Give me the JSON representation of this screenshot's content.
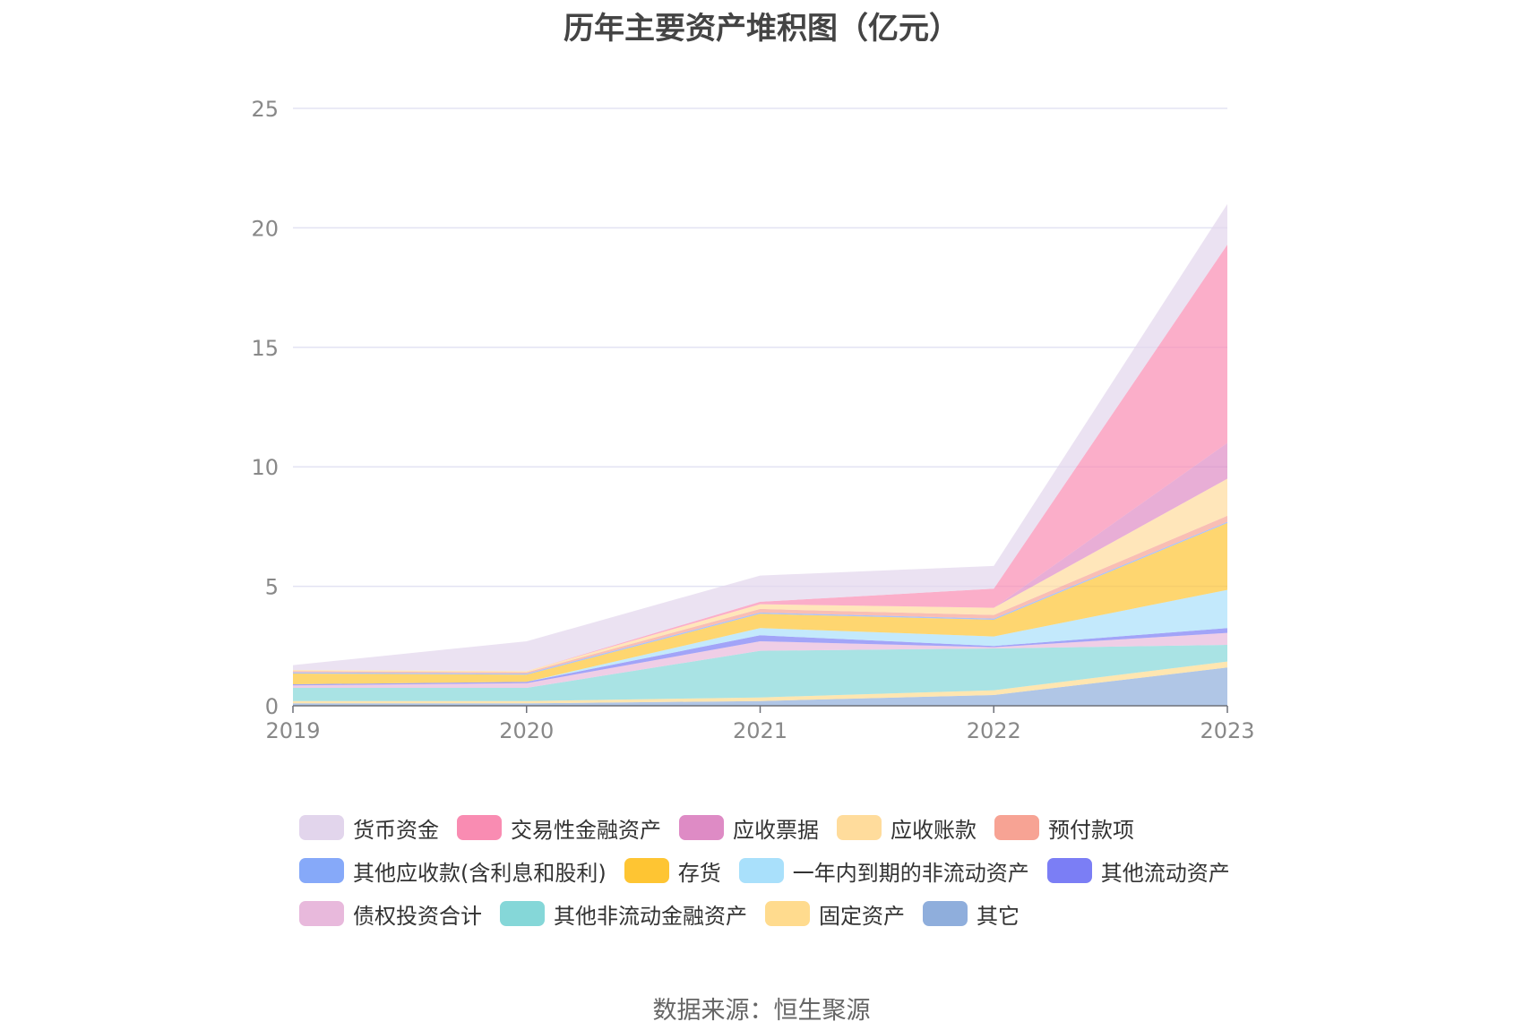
{
  "chart_data": {
    "type": "area",
    "stacked": true,
    "title": "历年主要资产堆积图（亿元）",
    "categories": [
      "2019",
      "2020",
      "2021",
      "2022",
      "2023"
    ],
    "ylim": [
      0,
      25
    ],
    "yticks": [
      0,
      5,
      10,
      15,
      20,
      25
    ],
    "grid": true,
    "legend_position": "bottom",
    "series": [
      {
        "name": "其它",
        "color": "#8faedc",
        "values": [
          0.1,
          0.1,
          0.2,
          0.45,
          1.6
        ]
      },
      {
        "name": "固定资产",
        "color": "#ffdb8e",
        "values": [
          0.1,
          0.1,
          0.15,
          0.2,
          0.25
        ]
      },
      {
        "name": "其他非流动金融资产",
        "color": "#85d7d8",
        "values": [
          0.55,
          0.55,
          1.95,
          1.75,
          0.7
        ]
      },
      {
        "name": "债权投资合计",
        "color": "#e8b9dc",
        "values": [
          0.1,
          0.2,
          0.4,
          0.05,
          0.5
        ]
      },
      {
        "name": "其他流动资产",
        "color": "#7b7ef5",
        "values": [
          0.05,
          0.05,
          0.25,
          0.05,
          0.2
        ]
      },
      {
        "name": "一年内到期的非流动资产",
        "color": "#a9e0fb",
        "values": [
          0.0,
          0.0,
          0.3,
          0.4,
          1.6
        ]
      },
      {
        "name": "存货",
        "color": "#fec533",
        "values": [
          0.45,
          0.3,
          0.6,
          0.7,
          2.8
        ]
      },
      {
        "name": "其他应收款(含利息和股利)",
        "color": "#86a9f9",
        "values": [
          0.05,
          0.05,
          0.05,
          0.05,
          0.05
        ]
      },
      {
        "name": "预付款项",
        "color": "#f7a394",
        "values": [
          0.05,
          0.05,
          0.15,
          0.15,
          0.25
        ]
      },
      {
        "name": "应收账款",
        "color": "#ffdc9c",
        "values": [
          0.05,
          0.05,
          0.2,
          0.3,
          1.55
        ]
      },
      {
        "name": "应收票据",
        "color": "#de8bc5",
        "values": [
          0.0,
          0.0,
          0.0,
          0.0,
          1.5
        ]
      },
      {
        "name": "交易性金融资产",
        "color": "#f98cb2",
        "values": [
          0.0,
          0.0,
          0.1,
          0.8,
          8.3
        ]
      },
      {
        "name": "货币资金",
        "color": "#e2d5ec",
        "values": [
          0.2,
          1.25,
          1.1,
          0.95,
          1.7
        ]
      }
    ]
  },
  "legend": [
    {
      "label": "货币资金",
      "color": "#e2d5ec"
    },
    {
      "label": "交易性金融资产",
      "color": "#f98cb2"
    },
    {
      "label": "应收票据",
      "color": "#de8bc5"
    },
    {
      "label": "应收账款",
      "color": "#ffdc9c"
    },
    {
      "label": "预付款项",
      "color": "#f7a394"
    },
    {
      "label": "其他应收款(含利息和股利)",
      "color": "#86a9f9"
    },
    {
      "label": "存货",
      "color": "#fec533"
    },
    {
      "label": "一年内到期的非流动资产",
      "color": "#a9e0fb"
    },
    {
      "label": "其他流动资产",
      "color": "#7b7ef5"
    },
    {
      "label": "债权投资合计",
      "color": "#e8b9dc"
    },
    {
      "label": "其他非流动金融资产",
      "color": "#85d7d8"
    },
    {
      "label": "固定资产",
      "color": "#ffdb8e"
    },
    {
      "label": "其它",
      "color": "#8faedc"
    }
  ],
  "source": "数据来源：恒生聚源"
}
